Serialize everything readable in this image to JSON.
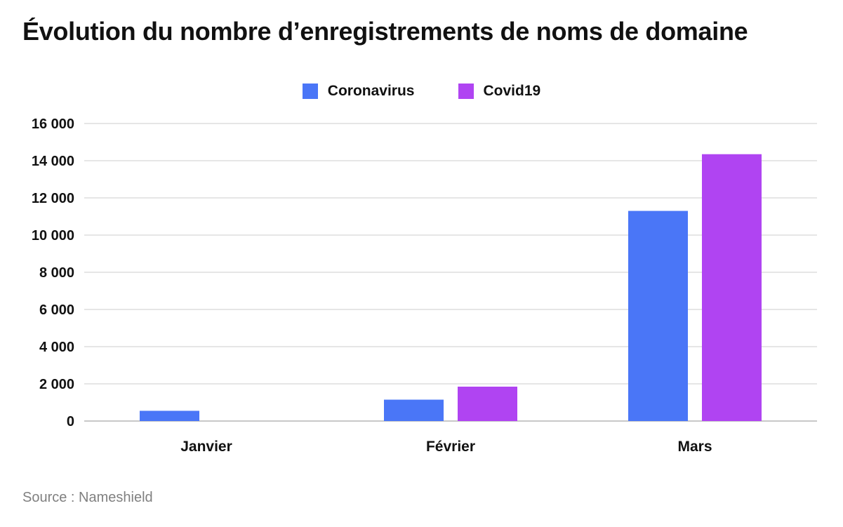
{
  "title": "Évolution du nombre d’enregistrements de noms de domaine",
  "source": "Source : Nameshield",
  "chart_data": {
    "type": "bar",
    "title": "Évolution du nombre d’enregistrements de noms de domaine",
    "categories": [
      "Janvier",
      "Février",
      "Mars"
    ],
    "series": [
      {
        "name": "Coronavirus",
        "color": "#4a76f7",
        "values": [
          550,
          1150,
          11300
        ]
      },
      {
        "name": "Covid19",
        "color": "#b044f2",
        "values": [
          0,
          1850,
          14350
        ]
      }
    ],
    "yticks": [
      "0",
      "2 000",
      "4 000",
      "6 000",
      "8 000",
      "10 000",
      "12 000",
      "14 000",
      "16 000"
    ],
    "ylim": [
      0,
      16000
    ],
    "grid": true,
    "legend_position": "top-center"
  }
}
